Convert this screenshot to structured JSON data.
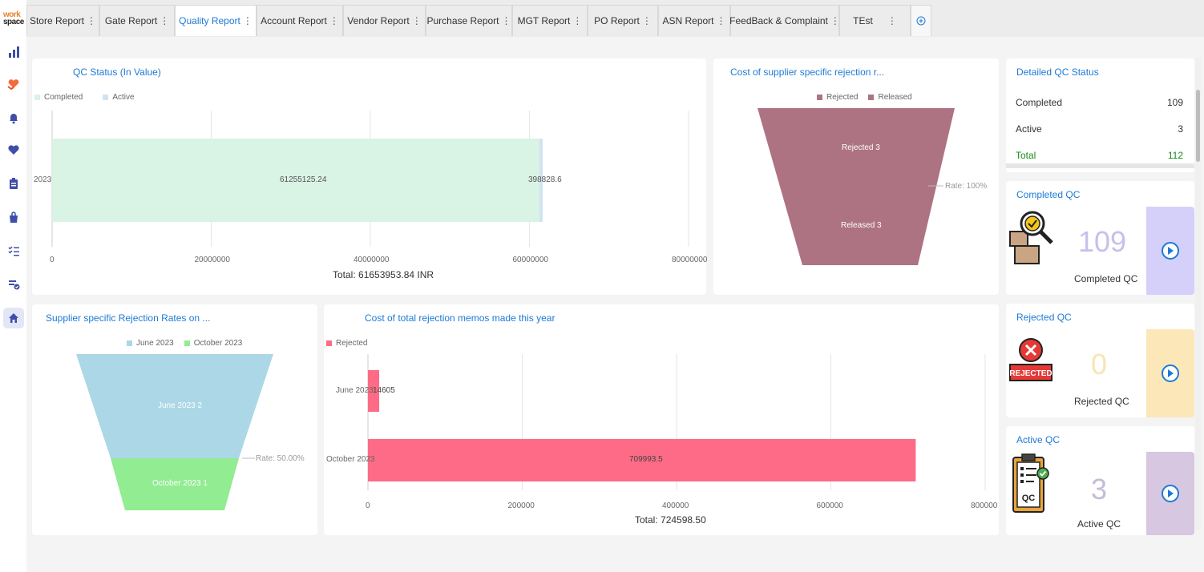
{
  "logo": {
    "line1": "work",
    "line2": "space"
  },
  "sidebar": {
    "icons": [
      "bar-chart-icon",
      "heart-hands-icon",
      "bell-icon",
      "heart-icon",
      "clipboard-icon",
      "bag-icon",
      "checklist-icon",
      "approval-icon",
      "home-icon"
    ]
  },
  "tabs": [
    {
      "label": "Store Report"
    },
    {
      "label": "Gate Report"
    },
    {
      "label": "Quality Report"
    },
    {
      "label": "Account Report"
    },
    {
      "label": "Vendor Report"
    },
    {
      "label": "Purchase Report"
    },
    {
      "label": "MGT Report"
    },
    {
      "label": "PO Report"
    },
    {
      "label": "ASN Report"
    },
    {
      "label": "FeedBack & Complaint"
    },
    {
      "label": "TEst"
    }
  ],
  "qc_status": {
    "title": "QC Status (In Value)",
    "legend": [
      "Completed",
      "Active"
    ],
    "total": "Total: 61653953.84 INR",
    "chart_data": {
      "type": "bar",
      "orientation": "horizontal",
      "stacked": true,
      "categories": [
        "2023"
      ],
      "series": [
        {
          "name": "Completed",
          "values": [
            61255125.24
          ],
          "color": "#d9f3e5"
        },
        {
          "name": "Active",
          "values": [
            398828.6
          ],
          "color": "#cfe3f3"
        }
      ],
      "xlim": [
        0,
        80000000
      ],
      "xticks": [
        "0",
        "20000000",
        "40000000",
        "60000000",
        "80000000"
      ],
      "data_labels": [
        "61255125.24",
        "398828.6"
      ]
    }
  },
  "cost_supplier": {
    "title": "Cost of supplier specific rejection r...",
    "legend": [
      "Rejected",
      "Released"
    ],
    "rate": "Rate: 100%",
    "chart_data": {
      "type": "funnel",
      "labels": [
        "Rejected",
        "Released"
      ],
      "values": [
        3,
        3
      ],
      "color": "#ad7382",
      "data_labels": [
        "Rejected 3",
        "Released 3"
      ]
    }
  },
  "detailed": {
    "title": "Detailed QC Status",
    "rows": [
      {
        "label": "Completed",
        "value": "109"
      },
      {
        "label": "Active",
        "value": "3"
      },
      {
        "label": "Total",
        "value": "112"
      }
    ]
  },
  "kpis": [
    {
      "title": "Completed QC",
      "value": "109",
      "label": "Completed QC",
      "num_color": "#c7c0ec",
      "side_color": "#d4d0fa",
      "icon": "inspection-icon"
    },
    {
      "title": "Rejected QC",
      "value": "0",
      "label": "Rejected QC",
      "num_color": "#f8e5b5",
      "side_color": "#fbe7b8",
      "icon": "rejected-stamp-icon"
    },
    {
      "title": "Active QC",
      "value": "3",
      "label": "Active QC",
      "num_color": "#c6bcd6",
      "side_color": "#d7c7e1",
      "icon": "clipboard-check-icon"
    }
  ],
  "supplier_rates": {
    "title": "Supplier specific Rejection Rates on ...",
    "legend": [
      "June 2023",
      "October 2023"
    ],
    "rate": "Rate: 50.00%",
    "chart_data": {
      "type": "funnel",
      "labels": [
        "June 2023",
        "October 2023"
      ],
      "values": [
        2,
        1
      ],
      "colors": [
        "#acd7e6",
        "#92ec92"
      ],
      "data_labels": [
        "June 2023 2",
        "October 2023 1"
      ]
    }
  },
  "memos": {
    "title": "Cost of total rejection memos made this year",
    "legend": [
      "Rejected"
    ],
    "total": "Total: 724598.50",
    "chart_data": {
      "type": "bar",
      "orientation": "horizontal",
      "categories": [
        "June 2023",
        "October 2023"
      ],
      "series": [
        {
          "name": "Rejected",
          "values": [
            14605,
            709993.5
          ],
          "color": "#fd6b86"
        }
      ],
      "xlim": [
        0,
        800000
      ],
      "xticks": [
        "0",
        "200000",
        "400000",
        "600000",
        "800000"
      ],
      "data_labels": [
        "14605",
        "709993.5"
      ]
    }
  }
}
